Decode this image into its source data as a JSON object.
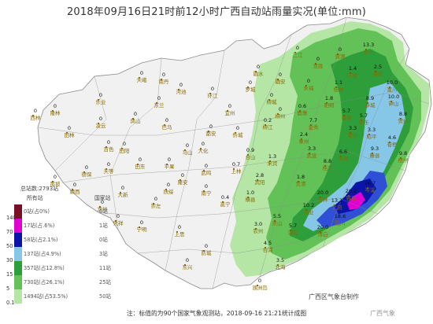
{
  "title": "2018年09月16日21时前12小时广西自动站雨量实况(单位:mm)",
  "map": {
    "colors": {
      "sea": "#ffffff",
      "land": "#f1f1f1",
      "border": "#8a8a8a",
      "light_green": "#b5e6a5",
      "mid_green": "#63c257",
      "dark_green": "#2e9e3a",
      "light_blue": "#86c6e6",
      "blue": "#2f4fd6",
      "navy": "#0a14a8",
      "magenta": "#e000d2"
    },
    "station_labels": [
      {
        "name": "隆林",
        "value": "0"
      },
      {
        "name": "西林",
        "value": "0"
      },
      {
        "name": "田林",
        "value": "0"
      },
      {
        "name": "乐业",
        "value": "0"
      },
      {
        "name": "凌云",
        "value": "0"
      },
      {
        "name": "天峨",
        "value": "0"
      },
      {
        "name": "南丹",
        "value": "0"
      },
      {
        "name": "河池",
        "value": "0"
      },
      {
        "name": "东兰",
        "value": "0"
      },
      {
        "name": "凤山",
        "value": "0"
      },
      {
        "name": "巴马",
        "value": "0"
      },
      {
        "name": "百色",
        "value": "0"
      },
      {
        "name": "田阳",
        "value": "0"
      },
      {
        "name": "田东",
        "value": "0"
      },
      {
        "name": "那坡",
        "value": "0"
      },
      {
        "name": "德保",
        "value": "0"
      },
      {
        "name": "靖西",
        "value": "0"
      },
      {
        "name": "平果",
        "value": "0"
      },
      {
        "name": "马山",
        "value": "0"
      },
      {
        "name": "都安",
        "value": "0"
      },
      {
        "name": "大化",
        "value": "0"
      },
      {
        "name": "忻城",
        "value": "0"
      },
      {
        "name": "宜州",
        "value": "0"
      },
      {
        "name": "环江",
        "value": "0"
      },
      {
        "name": "罗城",
        "value": "0"
      },
      {
        "name": "融水",
        "value": "0"
      },
      {
        "name": "融安",
        "value": "0"
      },
      {
        "name": "三江",
        "value": "0"
      },
      {
        "name": "龙胜",
        "value": "0"
      },
      {
        "name": "全州",
        "value": "13.3"
      },
      {
        "name": "兴安",
        "value": "1.4"
      },
      {
        "name": "资源",
        "value": "0"
      },
      {
        "name": "灌阳",
        "value": "2.5"
      },
      {
        "name": "永福",
        "value": "0"
      },
      {
        "name": "桂林",
        "value": "1.1"
      },
      {
        "name": "阳朔",
        "value": "1.8"
      },
      {
        "name": "荔浦",
        "value": "5.7"
      },
      {
        "name": "恭城",
        "value": "8.9"
      },
      {
        "name": "平乐",
        "value": "5.7"
      },
      {
        "name": "钟山",
        "value": "10.0"
      },
      {
        "name": "贺州",
        "value": "8.8"
      },
      {
        "name": "富川",
        "value": "10.0"
      },
      {
        "name": "昭平",
        "value": "3.3"
      },
      {
        "name": "蒙山",
        "value": "3.3"
      },
      {
        "name": "金秀",
        "value": "7.7"
      },
      {
        "name": "象州",
        "value": "2.4"
      },
      {
        "name": "武宣",
        "value": "3.3"
      },
      {
        "name": "来宾",
        "value": "1.3"
      },
      {
        "name": "柳州",
        "value": "0"
      },
      {
        "name": "鹿寨",
        "value": "0.6"
      },
      {
        "name": "柳城",
        "value": "0"
      },
      {
        "name": "柳江",
        "value": "0.2"
      },
      {
        "name": "合山",
        "value": "0.9"
      },
      {
        "name": "上林",
        "value": "0.7"
      },
      {
        "name": "宾阳",
        "value": "2.8"
      },
      {
        "name": "横县",
        "value": "1.0"
      },
      {
        "name": "贵港",
        "value": "1.8"
      },
      {
        "name": "桂平",
        "value": "8.8"
      },
      {
        "name": "平南",
        "value": "6.6"
      },
      {
        "name": "藤县",
        "value": "9.3"
      },
      {
        "name": "苍梧",
        "value": "4.6"
      },
      {
        "name": "梧州",
        "value": "9.8"
      },
      {
        "name": "岑溪",
        "value": "26.7"
      },
      {
        "name": "容县",
        "value": "20.2"
      },
      {
        "name": "北流",
        "value": "13.1"
      },
      {
        "name": "玉林",
        "value": "20.0"
      },
      {
        "name": "兴业",
        "value": "10.2"
      },
      {
        "name": "陆川",
        "value": "18.6"
      },
      {
        "name": "博白",
        "value": "20.0"
      },
      {
        "name": "浦北",
        "value": "5.7"
      },
      {
        "name": "灵山",
        "value": "5.5"
      },
      {
        "name": "钦州",
        "value": "3.0"
      },
      {
        "name": "合浦",
        "value": "4.5"
      },
      {
        "name": "北海",
        "value": "3.5"
      },
      {
        "name": "防城",
        "value": "0"
      },
      {
        "name": "东兴",
        "value": "0"
      },
      {
        "name": "上思",
        "value": "0"
      },
      {
        "name": "宁明",
        "value": "0"
      },
      {
        "name": "凭祥",
        "value": "0"
      },
      {
        "name": "龙州",
        "value": "0"
      },
      {
        "name": "大新",
        "value": "0"
      },
      {
        "name": "天等",
        "value": "0"
      },
      {
        "name": "崇左",
        "value": "0"
      },
      {
        "name": "扶绥",
        "value": "0"
      },
      {
        "name": "隆安",
        "value": "0"
      },
      {
        "name": "南宁",
        "value": "0"
      },
      {
        "name": "邕宁",
        "value": "0.4"
      },
      {
        "name": "武鸣",
        "value": "0"
      },
      {
        "name": "涠洲岛",
        "value": "0"
      }
    ]
  },
  "legend": {
    "total": "总站数:2793站",
    "col_head_1": "所有站",
    "col_head_2": "国家站",
    "levels": [
      "140",
      "70",
      "50",
      "30",
      "15",
      "5",
      "0.1"
    ],
    "rows": [
      {
        "color": "#7a0f2a",
        "stat": "0站(占0%)",
        "count": "0站"
      },
      {
        "color": "#e000d2",
        "stat": "17站(占.6%)",
        "count": "1站"
      },
      {
        "color": "#0a14a8",
        "stat": "58站(占2.1%)",
        "count": "0站"
      },
      {
        "color": "#86c6e6",
        "stat": "137站(占4.9%)",
        "count": "3站"
      },
      {
        "color": "#2e9e3a",
        "stat": "357站(占12.8%)",
        "count": "11站"
      },
      {
        "color": "#63c257",
        "stat": "730站(占26.1%)",
        "count": "25站"
      },
      {
        "color": "#b5e6a5",
        "stat": "1494站(占53.5%)",
        "count": "50站"
      }
    ]
  },
  "footer": "注：标值的为90个国家气象观测站，2018-09-16 21:21统计成图",
  "producer": "广西区气象台制作",
  "watermark": "广西气象"
}
